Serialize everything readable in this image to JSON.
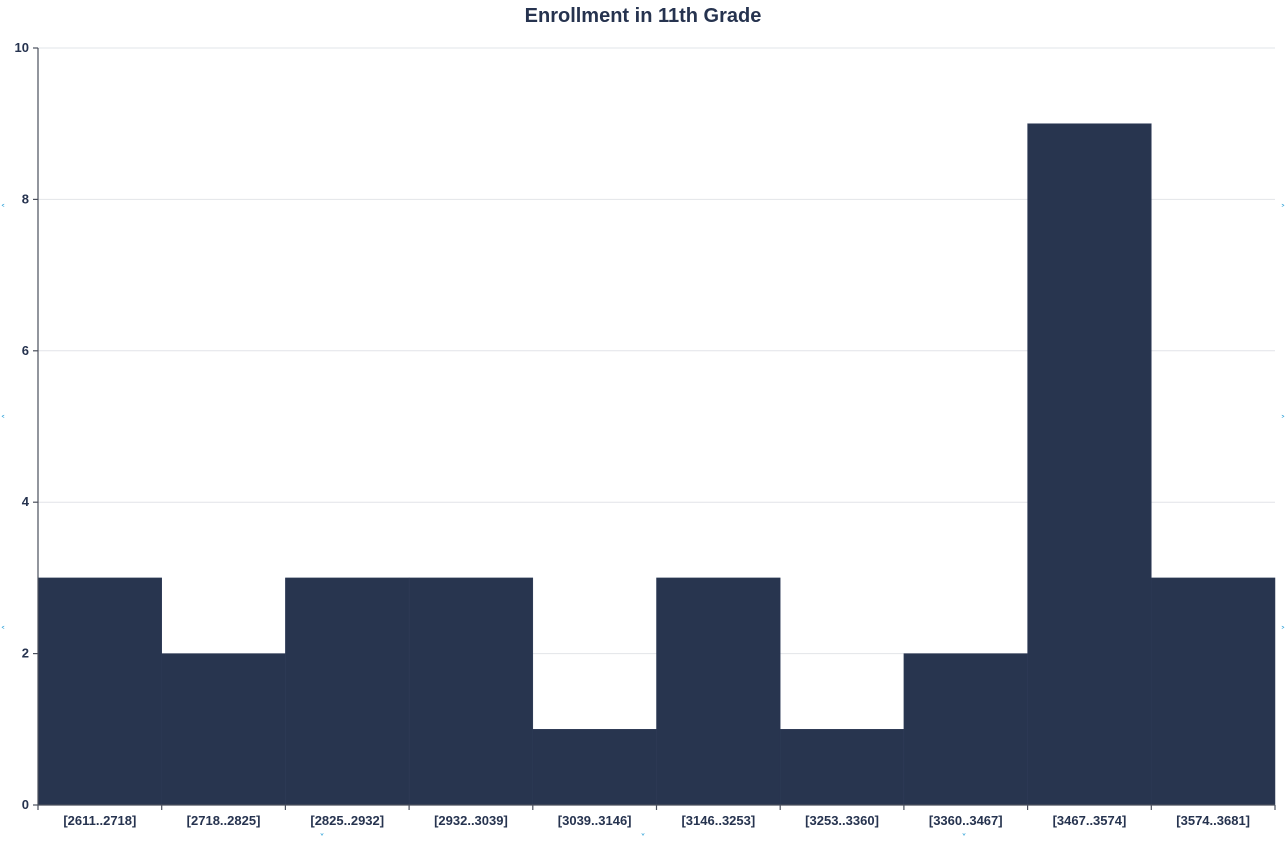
{
  "chart_data": {
    "type": "bar",
    "title": "Enrollment in 11th Grade",
    "xlabel": "",
    "ylabel": "",
    "categories": [
      "[2611..2718]",
      "[2718..2825]",
      "[2825..2932]",
      "[2932..3039]",
      "[3039..3146]",
      "[3146..3253]",
      "[3253..3360]",
      "[3360..3467]",
      "[3467..3574]",
      "[3574..3681]"
    ],
    "values": [
      3,
      2,
      3,
      3,
      1,
      3,
      1,
      2,
      9,
      3
    ],
    "ylim": [
      0,
      10
    ],
    "yticks": [
      0,
      2,
      4,
      6,
      8,
      10
    ],
    "grid": true,
    "bar_color": "#28354f",
    "axis_color": "#4a4f5c",
    "grid_color": "#e2e4e8"
  }
}
